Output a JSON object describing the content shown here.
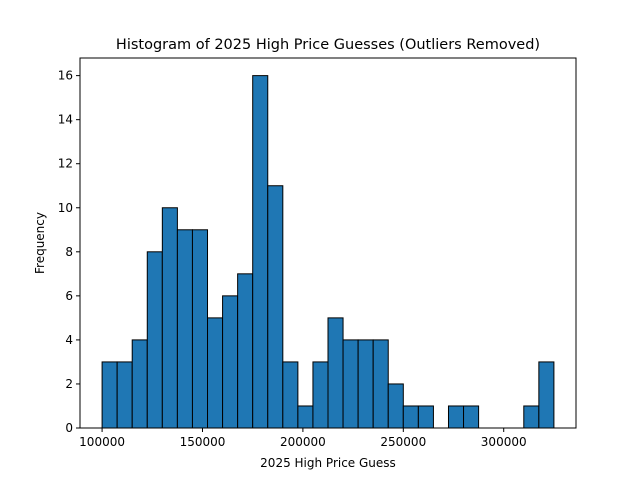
{
  "chart_data": {
    "type": "bar",
    "title": "Histogram of 2025 High Price Guesses (Outliers Removed)",
    "xlabel": "2025 High Price Guess",
    "ylabel": "Frequency",
    "x_range": [
      100000,
      325000
    ],
    "xlim": [
      89000,
      336000
    ],
    "ylim": [
      0,
      16.8
    ],
    "bins": 30,
    "values": [
      3,
      3,
      4,
      8,
      10,
      9,
      9,
      5,
      6,
      7,
      16,
      11,
      3,
      1,
      3,
      5,
      4,
      4,
      4,
      2,
      1,
      1,
      0,
      1,
      1,
      0,
      0,
      0,
      1,
      3
    ],
    "xticks": [
      {
        "value": 100000,
        "label": "100000"
      },
      {
        "value": 150000,
        "label": "150000"
      },
      {
        "value": 200000,
        "label": "200000"
      },
      {
        "value": 250000,
        "label": "250000"
      },
      {
        "value": 300000,
        "label": "300000"
      }
    ],
    "yticks": [
      {
        "value": 0,
        "label": "0"
      },
      {
        "value": 2,
        "label": "2"
      },
      {
        "value": 4,
        "label": "4"
      },
      {
        "value": 6,
        "label": "6"
      },
      {
        "value": 8,
        "label": "8"
      },
      {
        "value": 10,
        "label": "10"
      },
      {
        "value": 12,
        "label": "12"
      },
      {
        "value": 14,
        "label": "14"
      },
      {
        "value": 16,
        "label": "16"
      }
    ],
    "grid": false,
    "bar_color": "#1f77b4",
    "edge_color": "#000000"
  }
}
